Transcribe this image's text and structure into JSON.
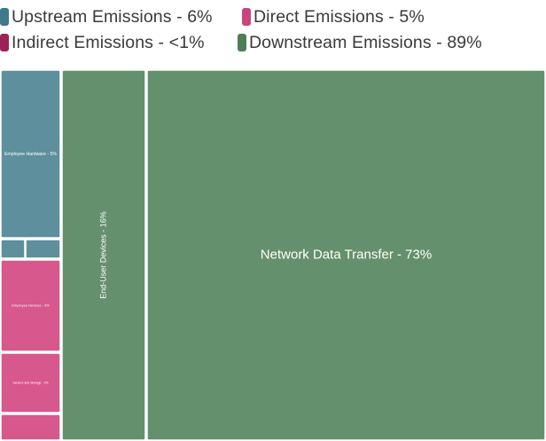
{
  "chart_data": {
    "type": "treemap",
    "legend": [
      {
        "name": "Upstream Emissions - 6%",
        "color": "#3f7a8c"
      },
      {
        "name": "Direct Emissions - 5%",
        "color": "#c9457d"
      },
      {
        "name": "Indirect Emissions - <1%",
        "color": "#9b2257"
      },
      {
        "name": "Downstream Emissions - 89%",
        "color": "#4f7d56"
      }
    ],
    "tiles": [
      {
        "label": "Employee Hardware - 5%",
        "group": "Upstream Emissions",
        "value": 5,
        "color": "#5e8f9c"
      },
      {
        "label": "",
        "group": "Upstream Emissions",
        "value": 0.5,
        "color": "#5e8f9c"
      },
      {
        "label": "",
        "group": "Upstream Emissions",
        "value": 0.5,
        "color": "#5e8f9c"
      },
      {
        "label": "Employee Devices - 3%",
        "group": "Direct Emissions",
        "value": 3,
        "color": "#d6588c"
      },
      {
        "label": "Servers and Storage - 2%",
        "group": "Direct Emissions",
        "value": 2,
        "color": "#d6588c"
      },
      {
        "label": "",
        "group": "Indirect Emissions",
        "value": 0.5,
        "color": "#d6588c"
      },
      {
        "label": "End-User Devices - 16%",
        "group": "Downstream Emissions",
        "value": 16,
        "color": "#65906d"
      },
      {
        "label": "Network Data Transfer - 73%",
        "group": "Downstream Emissions",
        "value": 73,
        "color": "#65906d"
      }
    ]
  }
}
